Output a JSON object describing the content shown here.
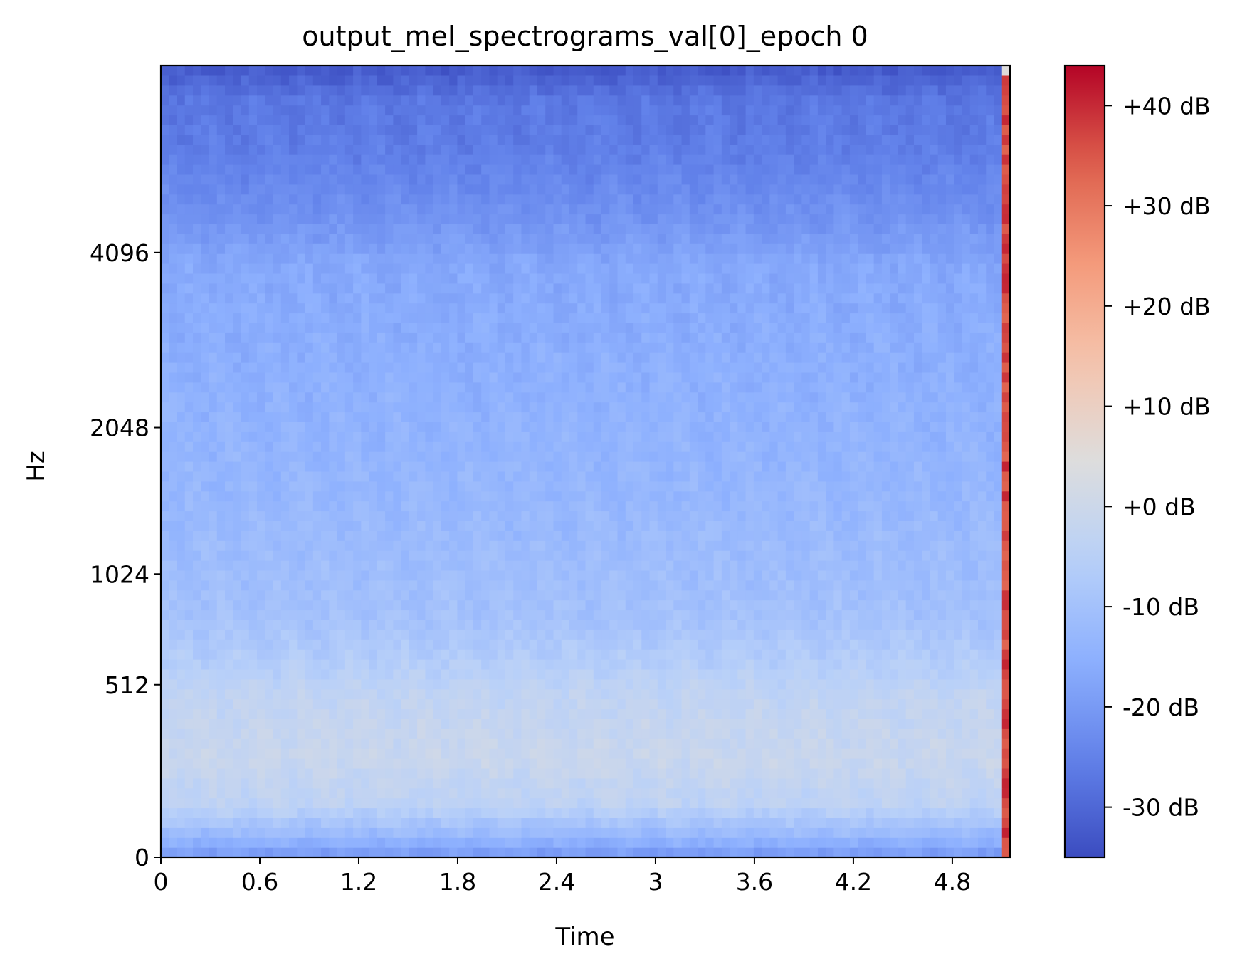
{
  "chart_data": {
    "type": "heatmap",
    "title": "output_mel_spectrograms_val[0]_epoch 0",
    "xlabel": "Time",
    "ylabel": "Hz",
    "xlim": [
      0,
      5.15
    ],
    "x_ticks": [
      {
        "value": 0,
        "label": "0"
      },
      {
        "value": 0.6,
        "label": "0.6"
      },
      {
        "value": 1.2,
        "label": "1.2"
      },
      {
        "value": 1.8,
        "label": "1.8"
      },
      {
        "value": 2.4,
        "label": "2.4"
      },
      {
        "value": 3.0,
        "label": "3"
      },
      {
        "value": 3.6,
        "label": "3.6"
      },
      {
        "value": 4.2,
        "label": "4.2"
      },
      {
        "value": 4.8,
        "label": "4.8"
      }
    ],
    "y_scale": "mel",
    "y_ticks": [
      {
        "value": 0,
        "label": "0"
      },
      {
        "value": 512,
        "label": "512"
      },
      {
        "value": 1024,
        "label": "1024"
      },
      {
        "value": 2048,
        "label": "2048"
      },
      {
        "value": 4096,
        "label": "4096"
      }
    ],
    "colormap": "coolwarm",
    "color_range": [
      -35,
      44
    ],
    "colorbar_ticks": [
      {
        "value": 40,
        "label": "+40 dB"
      },
      {
        "value": 30,
        "label": "+30 dB"
      },
      {
        "value": 20,
        "label": "+20 dB"
      },
      {
        "value": 10,
        "label": "+10 dB"
      },
      {
        "value": 0,
        "label": "+0 dB"
      },
      {
        "value": -10,
        "label": "-10 dB"
      },
      {
        "value": -20,
        "label": "-20 dB"
      },
      {
        "value": -30,
        "label": "-30 dB"
      }
    ],
    "n_time_frames": 106,
    "n_mel_bins": 80,
    "mel_profile_db": [
      [
        0,
        -19
      ],
      [
        0.02,
        -13
      ],
      [
        0.06,
        -4
      ],
      [
        0.12,
        -1
      ],
      [
        0.2,
        -3
      ],
      [
        0.24,
        -6
      ],
      [
        0.3,
        -10
      ],
      [
        0.45,
        -13
      ],
      [
        0.6,
        -15
      ],
      [
        0.75,
        -17
      ],
      [
        0.82,
        -22
      ],
      [
        0.9,
        -26
      ],
      [
        0.96,
        -27
      ],
      [
        1.0,
        -32
      ]
    ],
    "last_frame_db": 37
  }
}
